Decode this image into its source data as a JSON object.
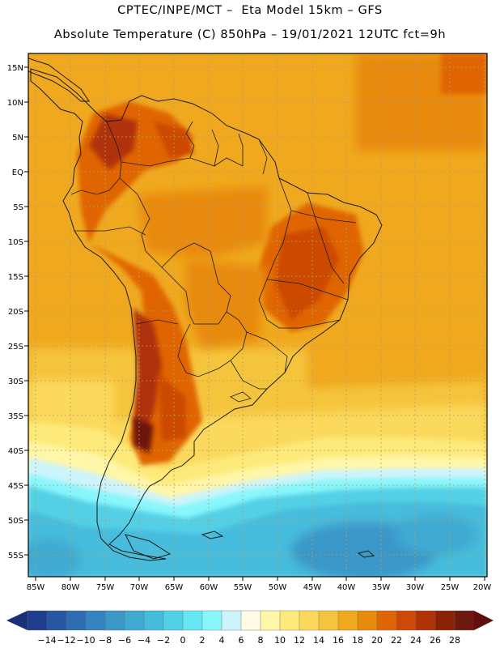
{
  "header": {
    "line1": "CPTEC/INPE/MCT –  Eta Model 15km – GFS",
    "line2": "Absolute Temperature (C) 850hPa – 19/01/2021 12UTC fct=9h"
  },
  "axes": {
    "lat_labels": [
      "15N",
      "10N",
      "5N",
      "EQ",
      "5S",
      "10S",
      "15S",
      "20S",
      "25S",
      "30S",
      "35S",
      "40S",
      "45S",
      "50S",
      "55S"
    ],
    "lon_labels": [
      "85W",
      "80W",
      "75W",
      "70W",
      "65W",
      "60W",
      "55W",
      "50W",
      "45W",
      "40W",
      "35W",
      "30W",
      "25W",
      "20W"
    ]
  },
  "colorbar": {
    "labels": [
      "-14",
      "-12",
      "-10",
      "-8",
      "-6",
      "-4",
      "-2",
      "0",
      "2",
      "4",
      "6",
      "8",
      "10",
      "12",
      "14",
      "16",
      "18",
      "20",
      "22",
      "24",
      "26",
      "28"
    ],
    "colors": [
      "#1f3e8e",
      "#2756a3",
      "#2f6db3",
      "#3583bf",
      "#3a97c8",
      "#40aad2",
      "#46bcdc",
      "#52d0e6",
      "#66e6f2",
      "#88f6fb",
      "#ccf4fb",
      "#fffbe4",
      "#fff6a8",
      "#fdea7a",
      "#fbd95c",
      "#f5c43e",
      "#f0a91e",
      "#e88a0c",
      "#e06505",
      "#cc4a06",
      "#b03308",
      "#8a2306",
      "#6e1810"
    ],
    "low_arrow_color": "#1a2f78",
    "high_arrow_color": "#5e0f0e"
  },
  "palette": {
    "frame": "#000000",
    "land_outline": "#1a1a1a",
    "grid": "#b0a070"
  }
}
